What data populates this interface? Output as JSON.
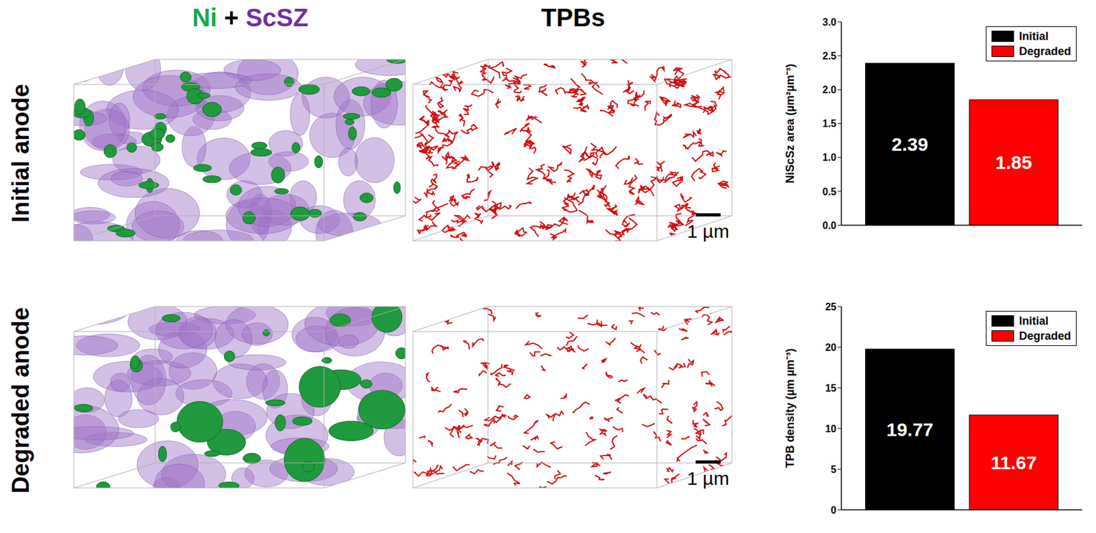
{
  "column_heads": [
    {
      "parts": [
        {
          "text": "Ni",
          "color": "#1aa84a"
        },
        {
          "text": "+",
          "color": "#000000"
        },
        {
          "text": "ScSZ",
          "color": "#7030a0"
        }
      ]
    },
    {
      "parts": [
        {
          "text": "TPBs",
          "color": "#000000"
        }
      ]
    }
  ],
  "row_labels": [
    "Initial anode",
    "Degraded anode"
  ],
  "scale_bars": [
    "1 µm",
    "1 µm"
  ],
  "chart_data": [
    {
      "type": "bar",
      "categories": [
        null
      ],
      "series": [
        {
          "name": "Initial",
          "color": "#000000",
          "values": [
            2.39
          ]
        },
        {
          "name": "Degraded",
          "color": "#ff0000",
          "values": [
            1.85
          ]
        }
      ],
      "y_label": "NiScSz area (µm²µm⁻³)",
      "ylim": [
        0,
        3
      ],
      "yticks": [
        {
          "value": 0,
          "label": "0.0"
        },
        0.5,
        {
          "value": 1,
          "label": "1.0"
        },
        1.5,
        {
          "value": 2,
          "label": "2.0"
        },
        2.5,
        {
          "value": 3,
          "label": "3.0"
        }
      ],
      "data_labels": true,
      "legend": "upper right",
      "tick_labels": "y"
    },
    {
      "type": "bar",
      "categories": [
        null
      ],
      "series": [
        {
          "name": "Initial",
          "color": "#000000",
          "values": [
            19.77
          ]
        },
        {
          "name": "Degraded",
          "color": "#ff0000",
          "values": [
            11.67
          ]
        }
      ],
      "y_label": "TPB density (µm µm⁻³)",
      "ylim": [
        0,
        25
      ],
      "yticks": [
        0,
        5,
        10,
        15,
        20,
        25
      ],
      "data_labels": true,
      "legend": "upper right",
      "tick_labels": "y"
    }
  ]
}
